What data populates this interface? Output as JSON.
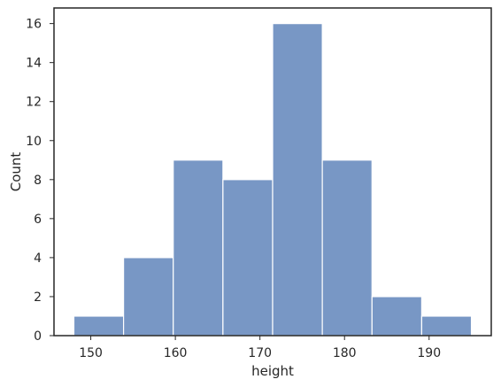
{
  "chart_data": {
    "type": "bar",
    "subtype": "histogram",
    "xlabel": "height",
    "ylabel": "Count",
    "xlim": [
      145.65,
      197.35
    ],
    "ylim": [
      0,
      16.8
    ],
    "xticks": [
      150,
      160,
      170,
      180,
      190
    ],
    "yticks": [
      0,
      2,
      4,
      6,
      8,
      10,
      12,
      14,
      16
    ],
    "bins": [
      {
        "x0": 148.0,
        "x1": 153.875,
        "count": 1
      },
      {
        "x0": 153.875,
        "x1": 159.75,
        "count": 4
      },
      {
        "x0": 159.75,
        "x1": 165.625,
        "count": 9
      },
      {
        "x0": 165.625,
        "x1": 171.5,
        "count": 8
      },
      {
        "x0": 171.5,
        "x1": 177.375,
        "count": 16
      },
      {
        "x0": 177.375,
        "x1": 183.25,
        "count": 9
      },
      {
        "x0": 183.25,
        "x1": 189.125,
        "count": 2
      },
      {
        "x0": 189.125,
        "x1": 195.0,
        "count": 1
      }
    ],
    "grid": false,
    "colors": {
      "bar_fill": "#7897c5",
      "bar_edge": "#ffffff",
      "frame": "#262626",
      "text": "#262626"
    }
  }
}
